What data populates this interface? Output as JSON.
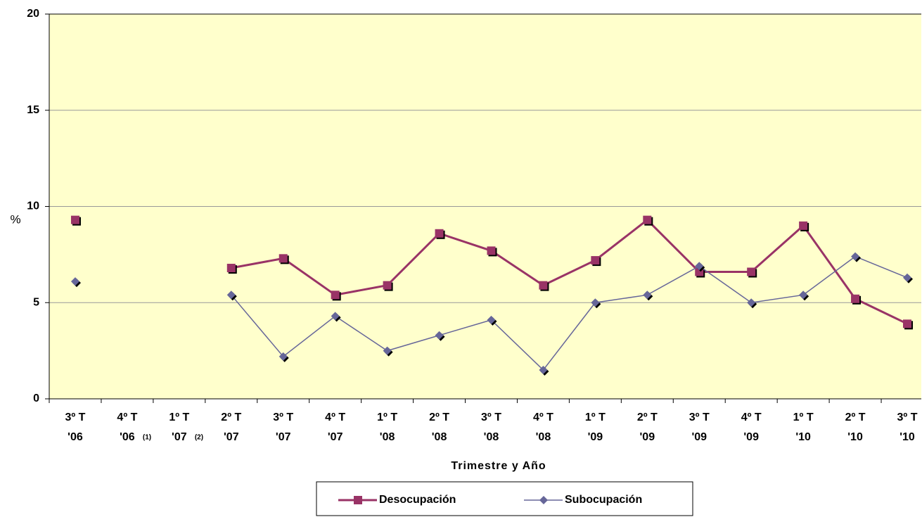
{
  "chart_data": {
    "type": "line",
    "y_label": "%",
    "x_label": "Trimestre y Año",
    "categories": [
      "3º T '06",
      "4º T '06",
      "1º T '07",
      "2º T '07",
      "3º T '07",
      "4º T '07",
      "1º T '08",
      "2º T '08",
      "3º T '08",
      "4º T '08",
      "1º T '09",
      "2º T '09",
      "3º T '09",
      "4º T '09",
      "1º T '10",
      "2º T '10",
      "3º T '10"
    ],
    "category_notes": [
      null,
      "(1)",
      "(2)",
      null,
      null,
      null,
      null,
      null,
      null,
      null,
      null,
      null,
      null,
      null,
      null,
      null,
      null
    ],
    "series": [
      {
        "name": "Desocupación",
        "color": "#993366",
        "marker": "square",
        "values": [
          9.3,
          null,
          null,
          6.8,
          7.3,
          5.4,
          5.9,
          8.6,
          7.7,
          5.9,
          7.2,
          9.3,
          6.6,
          6.6,
          9.0,
          5.2,
          3.9
        ]
      },
      {
        "name": "Subocupación",
        "color": "#666699",
        "marker": "diamond",
        "values": [
          6.1,
          null,
          null,
          5.4,
          2.2,
          4.3,
          2.5,
          3.3,
          4.1,
          1.5,
          5.0,
          5.4,
          6.9,
          5.0,
          5.4,
          7.4,
          6.3
        ]
      }
    ],
    "ylim": [
      0,
      20
    ],
    "yticks": [
      0,
      5,
      10,
      15,
      20
    ],
    "grid": true,
    "plot_background": "#ffffcc",
    "legend": "bottom"
  }
}
